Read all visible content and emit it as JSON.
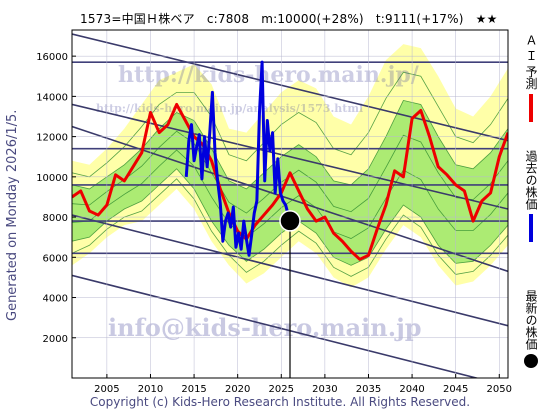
{
  "header": {
    "code_name": "1573=中国Ｈ株ベア",
    "current": "c:7808",
    "target": "m:10000(+28%)",
    "forecast": "t:9111(+17%)",
    "rating": "★★"
  },
  "side_label": "Generated on Monday 2026/1/5.",
  "watermarks": {
    "url_top": "http://kids-hero.main.jp/",
    "url_mid": "http://kids-hero.main.jp/analysis/1573.html",
    "email": "info@kids-hero.main.jp"
  },
  "copyright": "Copyright (c) Kids-Hero Research Institute. All Rights Reserved.",
  "legend": [
    {
      "label": "Ａ Ｉ 予測",
      "color": "#ee0000",
      "kind": "line"
    },
    {
      "label": "過去の株価",
      "color": "#0000dd",
      "kind": "line"
    },
    {
      "label": "最新の株価",
      "color": "#000000",
      "kind": "dot"
    }
  ],
  "colors": {
    "band_outer": "#ffffa8",
    "band_inner": "#9ee86a",
    "band_lines": "#2e8b2e",
    "ai": "#ee0000",
    "past": "#0000dd",
    "trend": "#3a3a6a",
    "grid": "#40407a"
  },
  "chart_data": {
    "type": "line",
    "xlim": [
      2001,
      2051
    ],
    "ylim": [
      0,
      17300
    ],
    "x_ticks": [
      2005,
      2010,
      2015,
      2020,
      2025,
      2030,
      2035,
      2040,
      2045,
      2050
    ],
    "y_ticks": [
      2000,
      4000,
      6000,
      8000,
      10000,
      12000,
      14000,
      16000
    ],
    "hlines": [
      6200,
      7800,
      9600,
      11400,
      15700
    ],
    "vline_x": 2026.0,
    "latest": {
      "x": 2026.0,
      "y": 7808
    },
    "trend_lines": [
      {
        "x": [
          2001,
          2051
        ],
        "y": [
          13600,
          8400
        ]
      },
      {
        "x": [
          2001,
          2051
        ],
        "y": [
          12500,
          5300
        ]
      },
      {
        "x": [
          2001,
          2051
        ],
        "y": [
          17100,
          11800
        ]
      },
      {
        "x": [
          2001,
          2051
        ],
        "y": [
          8100,
          2600
        ]
      },
      {
        "x": [
          2001,
          2051
        ],
        "y": [
          5100,
          -400
        ]
      }
    ],
    "band": {
      "x": [
        2001,
        2003,
        2005,
        2007,
        2009,
        2011,
        2013,
        2015,
        2017,
        2019,
        2021,
        2023,
        2025,
        2027,
        2029,
        2031,
        2033,
        2035,
        2037,
        2039,
        2041,
        2043,
        2045,
        2047,
        2049,
        2051
      ],
      "outer_low": [
        5600,
        6200,
        7000,
        7600,
        7800,
        8600,
        9400,
        8400,
        6800,
        5600,
        4700,
        5200,
        6000,
        6800,
        6200,
        5000,
        4500,
        5000,
        6400,
        7600,
        7000,
        5600,
        4600,
        4800,
        5600,
        6600
      ],
      "inner_low": [
        6800,
        7000,
        7800,
        8400,
        8800,
        9600,
        10400,
        9400,
        7800,
        6600,
        5800,
        6400,
        7200,
        7800,
        7200,
        6000,
        5600,
        6000,
        7400,
        8600,
        8000,
        6600,
        5700,
        5800,
        6600,
        7600
      ],
      "inner_high": [
        9600,
        9400,
        10000,
        10600,
        11400,
        12400,
        13200,
        12800,
        11400,
        9800,
        9400,
        10200,
        11000,
        11600,
        11000,
        9800,
        9600,
        10400,
        12000,
        13800,
        13600,
        12000,
        10600,
        10400,
        11200,
        12400
      ],
      "outer_high": [
        10800,
        10600,
        11400,
        12400,
        13600,
        14800,
        15200,
        15600,
        14600,
        12400,
        12200,
        13200,
        14200,
        14800,
        14400,
        13000,
        12600,
        14000,
        15800,
        16600,
        16400,
        15000,
        13400,
        13000,
        14000,
        15400
      ]
    },
    "series": [
      {
        "name": "Ａ Ｉ 予測",
        "x": [
          2001,
          2002,
          2003,
          2004,
          2005,
          2006,
          2007,
          2008,
          2009,
          2010,
          2011,
          2012,
          2013,
          2014,
          2015,
          2016,
          2017,
          2018,
          2019,
          2020,
          2021,
          2022,
          2023,
          2024,
          2025,
          2026,
          2027,
          2028,
          2029,
          2030,
          2031,
          2032,
          2033,
          2034,
          2035,
          2036,
          2037,
          2038,
          2039,
          2040,
          2041,
          2042,
          2043,
          2044,
          2045,
          2046,
          2047,
          2048,
          2049,
          2050,
          2051
        ],
        "y": [
          9000,
          9300,
          8300,
          8100,
          8600,
          10100,
          9800,
          10500,
          11200,
          13200,
          12200,
          12600,
          13600,
          12800,
          12000,
          11600,
          10800,
          9400,
          8200,
          7300,
          6900,
          7600,
          8100,
          8600,
          9200,
          10200,
          9300,
          8400,
          7800,
          8000,
          7200,
          6800,
          6300,
          5900,
          6100,
          7400,
          8600,
          10300,
          10000,
          12900,
          13300,
          12000,
          10500,
          10100,
          9600,
          9300,
          7800,
          8800,
          9200,
          11000,
          12200
        ]
      },
      {
        "name": "過去の株価",
        "x": [
          2014.1,
          2014.4,
          2014.7,
          2015.0,
          2015.3,
          2015.6,
          2015.9,
          2016.2,
          2016.5,
          2016.8,
          2017.1,
          2017.4,
          2017.7,
          2018.0,
          2018.3,
          2018.6,
          2018.9,
          2019.2,
          2019.5,
          2019.8,
          2020.1,
          2020.4,
          2020.7,
          2021.0,
          2021.3,
          2021.6,
          2021.9,
          2022.2,
          2022.5,
          2022.8,
          2023.1,
          2023.4,
          2023.7,
          2024.0,
          2024.3,
          2024.6,
          2024.9,
          2025.2,
          2025.5,
          2025.8,
          2026.0
        ],
        "y": [
          10000,
          11800,
          12600,
          10800,
          11500,
          12100,
          9900,
          12000,
          10500,
          12200,
          14200,
          11200,
          9800,
          8700,
          6800,
          7800,
          8200,
          7500,
          8500,
          6500,
          7200,
          6400,
          7800,
          6900,
          6100,
          7100,
          8200,
          8800,
          13200,
          15700,
          9800,
          12800,
          11300,
          12200,
          9200,
          10900,
          9200,
          8800,
          8600,
          8100,
          7808
        ]
      }
    ]
  }
}
